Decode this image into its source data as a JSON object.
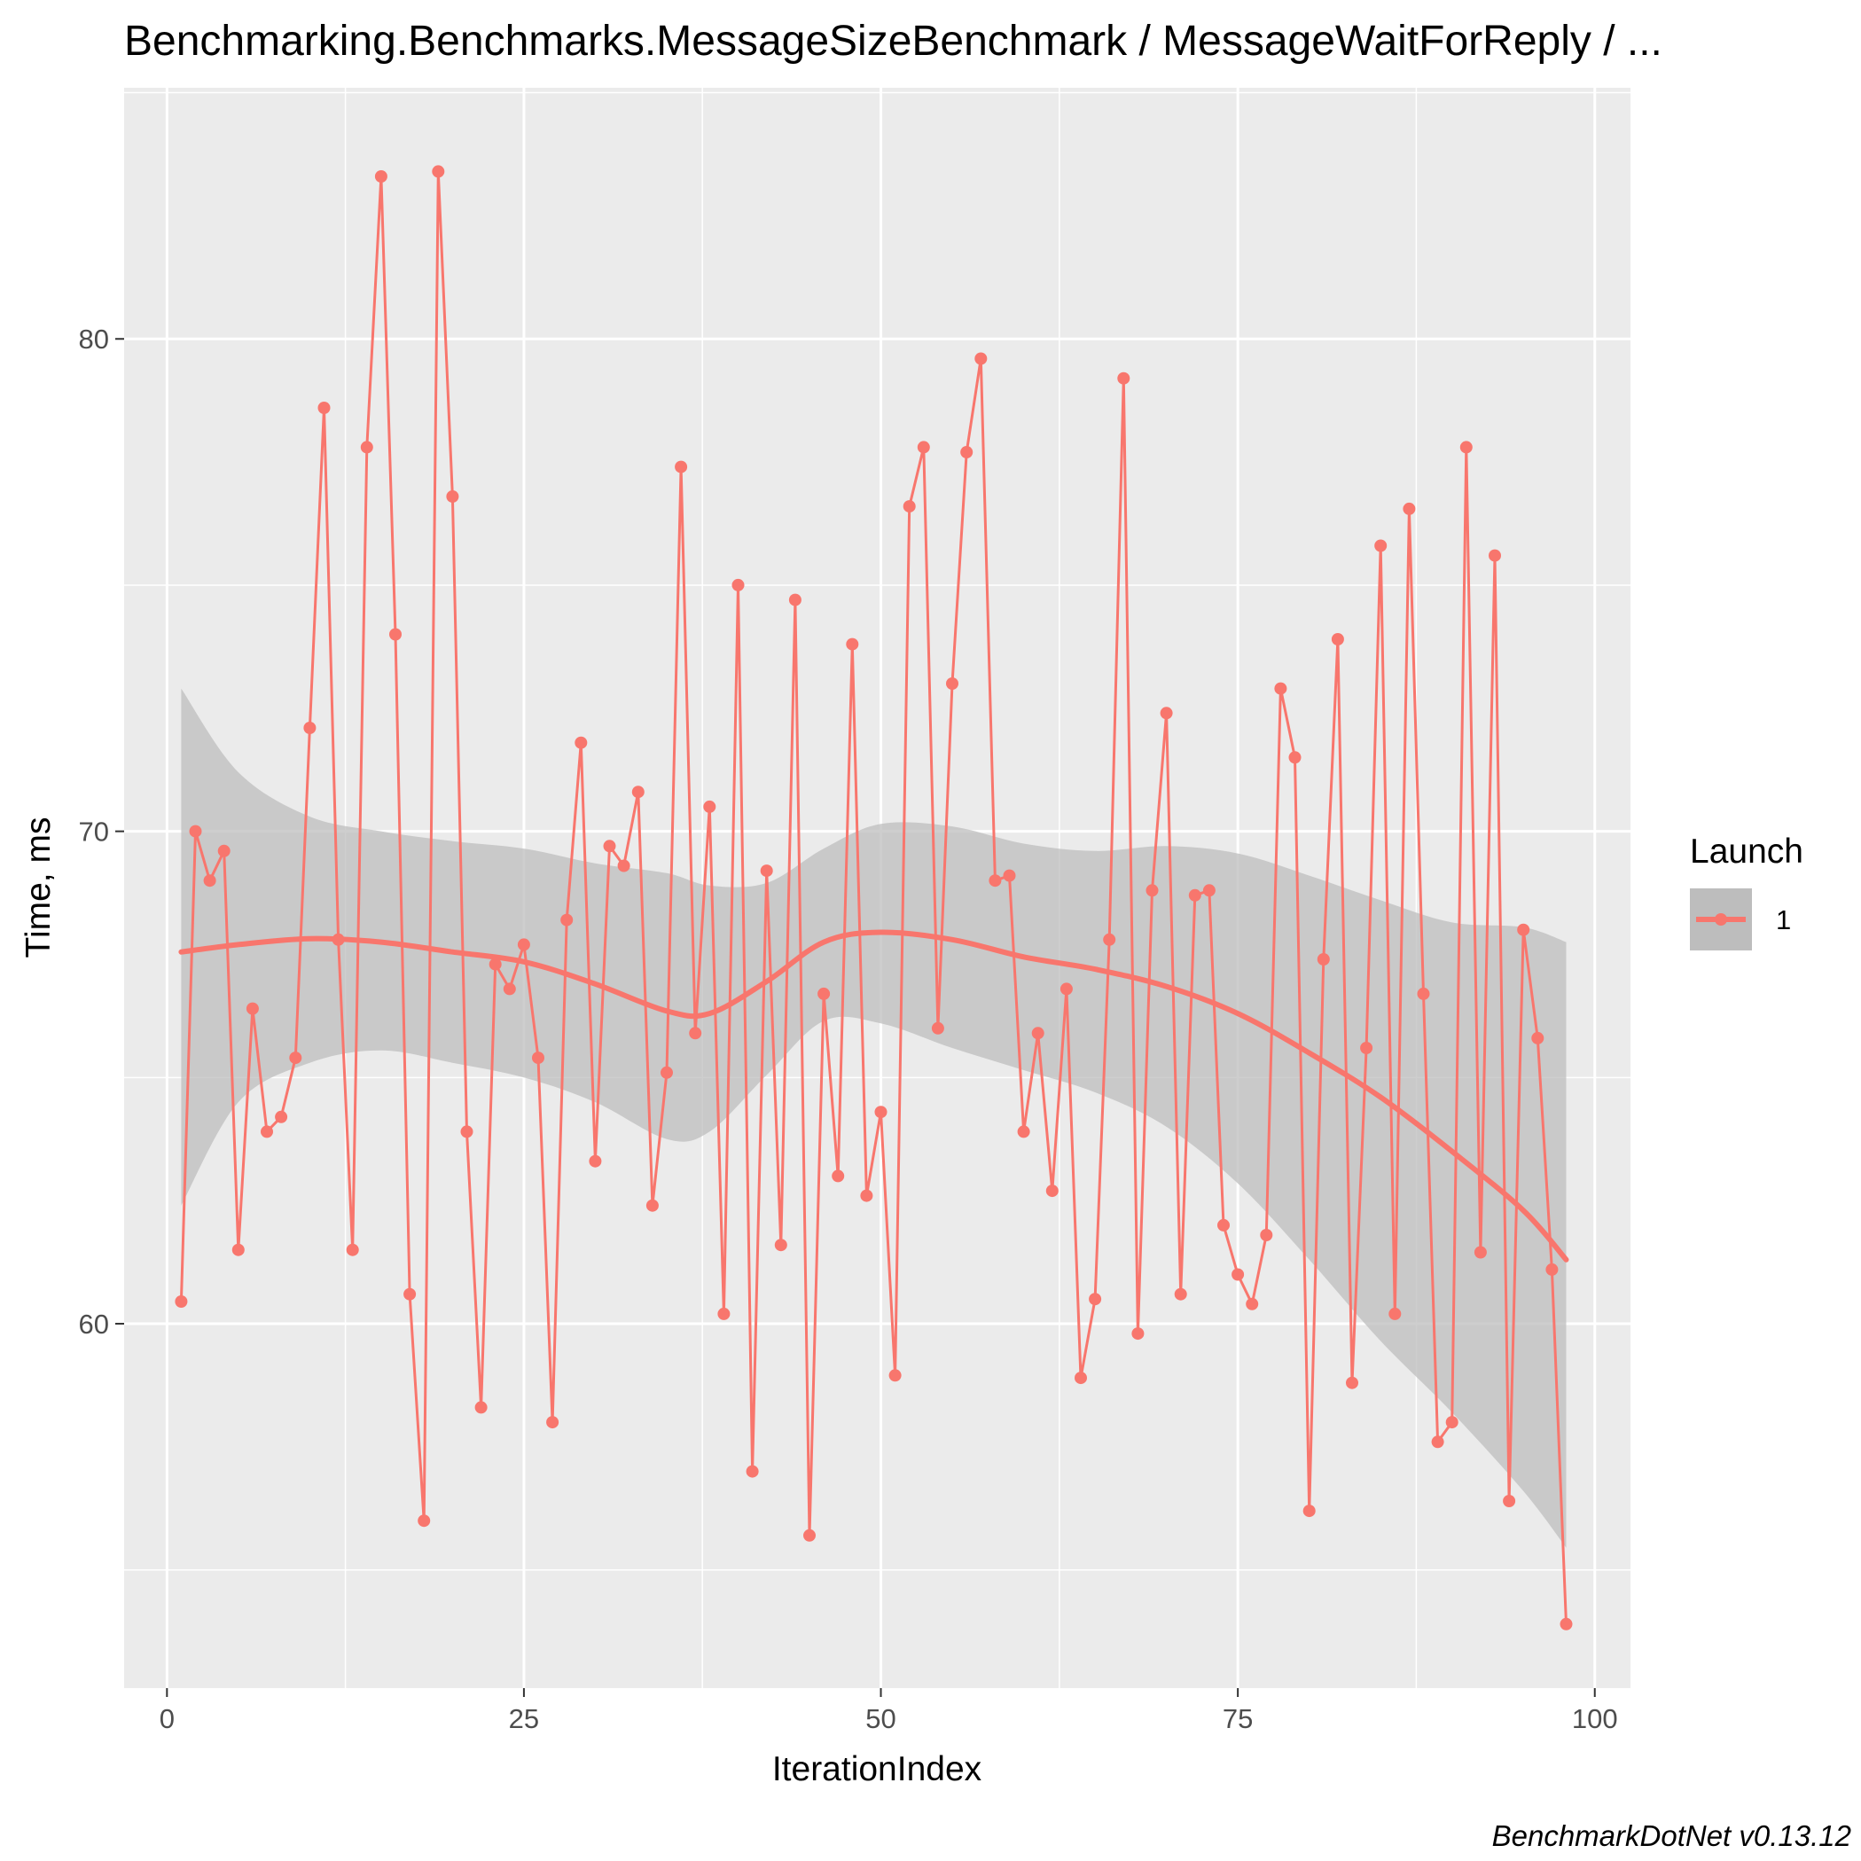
{
  "chart_data": {
    "type": "line",
    "title": "Benchmarking.Benchmarks.MessageSizeBenchmark / MessageWaitForReply / ...",
    "xlabel": "IterationIndex",
    "ylabel": "Time, ms",
    "xlim": [
      -3,
      102.5
    ],
    "ylim": [
      52.6,
      85.1
    ],
    "x_ticks": [
      0,
      25,
      50,
      75,
      100
    ],
    "x_tick_labels": [
      "0",
      "25",
      "50",
      "75",
      "100"
    ],
    "y_ticks": [
      60,
      70,
      80
    ],
    "y_tick_labels": [
      "60",
      "70",
      "80"
    ],
    "grid": true,
    "legend": {
      "title": "Launch",
      "position": "right",
      "entries": [
        "1"
      ]
    },
    "caption": "BenchmarkDotNet v0.13.12",
    "colors": {
      "series": "#f8766d",
      "smooth": "#f8766d",
      "ribbon": "#bdbdbd",
      "panel": "#ebebeb",
      "grid": "#ffffff"
    },
    "series": [
      {
        "name": "1",
        "x": [
          1,
          2,
          3,
          4,
          5,
          6,
          7,
          8,
          9,
          10,
          11,
          12,
          13,
          14,
          15,
          16,
          17,
          18,
          19,
          20,
          21,
          22,
          23,
          24,
          25,
          26,
          27,
          28,
          29,
          30,
          31,
          32,
          33,
          34,
          35,
          36,
          37,
          38,
          39,
          40,
          41,
          42,
          43,
          44,
          45,
          46,
          47,
          48,
          49,
          50,
          51,
          52,
          53,
          54,
          55,
          56,
          57,
          58,
          59,
          60,
          61,
          62,
          63,
          64,
          65,
          66,
          67,
          68,
          69,
          70,
          71,
          72,
          73,
          74,
          75,
          76,
          77,
          78,
          79,
          80,
          81,
          82,
          83,
          84,
          85,
          86,
          87,
          88,
          89,
          90,
          91,
          92,
          93,
          94,
          95,
          96,
          97,
          98
        ],
        "y": [
          60.45,
          70.0,
          69.0,
          69.6,
          61.5,
          66.4,
          63.9,
          64.2,
          65.4,
          72.1,
          78.6,
          67.8,
          61.5,
          77.8,
          83.3,
          74.0,
          60.6,
          56.0,
          83.4,
          76.8,
          63.9,
          58.3,
          67.3,
          66.8,
          67.7,
          65.4,
          58.0,
          68.2,
          71.8,
          63.3,
          69.7,
          69.3,
          70.8,
          62.4,
          65.1,
          77.4,
          65.9,
          70.5,
          60.2,
          75.0,
          57.0,
          69.2,
          61.6,
          74.7,
          55.7,
          66.7,
          63.0,
          73.8,
          62.6,
          64.3,
          58.95,
          76.6,
          77.8,
          66.0,
          73.0,
          77.7,
          79.6,
          69.0,
          69.1,
          63.9,
          65.9,
          62.7,
          66.8,
          58.9,
          60.5,
          67.8,
          79.2,
          59.8,
          68.8,
          72.4,
          60.6,
          68.7,
          68.8,
          62.0,
          61.0,
          60.4,
          61.8,
          72.9,
          71.5,
          56.2,
          67.4,
          73.9,
          58.8,
          65.6,
          75.8,
          60.2,
          76.55,
          66.7,
          57.6,
          58.0,
          77.8,
          61.45,
          75.6,
          56.4,
          68.0,
          65.8,
          61.1,
          53.9
        ]
      }
    ],
    "smooth": {
      "x": [
        1,
        5,
        10,
        15,
        20,
        25,
        30,
        35,
        38,
        42,
        46,
        50,
        55,
        60,
        65,
        70,
        75,
        80,
        85,
        90,
        95,
        98
      ],
      "y": [
        67.55,
        67.7,
        67.82,
        67.75,
        67.55,
        67.35,
        66.9,
        66.35,
        66.3,
        66.95,
        67.75,
        67.95,
        67.8,
        67.45,
        67.2,
        66.85,
        66.3,
        65.5,
        64.6,
        63.5,
        62.3,
        61.3
      ],
      "ymin": [
        62.4,
        64.5,
        65.3,
        65.55,
        65.3,
        65.0,
        64.5,
        63.75,
        63.9,
        65.05,
        66.15,
        66.1,
        65.6,
        65.15,
        64.7,
        64.0,
        62.85,
        61.3,
        59.65,
        58.2,
        56.6,
        55.45
      ],
      "ymax": [
        72.9,
        71.2,
        70.3,
        70.0,
        69.8,
        69.65,
        69.35,
        69.15,
        68.9,
        68.95,
        69.65,
        70.15,
        70.1,
        69.75,
        69.6,
        69.7,
        69.55,
        69.1,
        68.6,
        68.15,
        68.05,
        67.75
      ]
    }
  }
}
